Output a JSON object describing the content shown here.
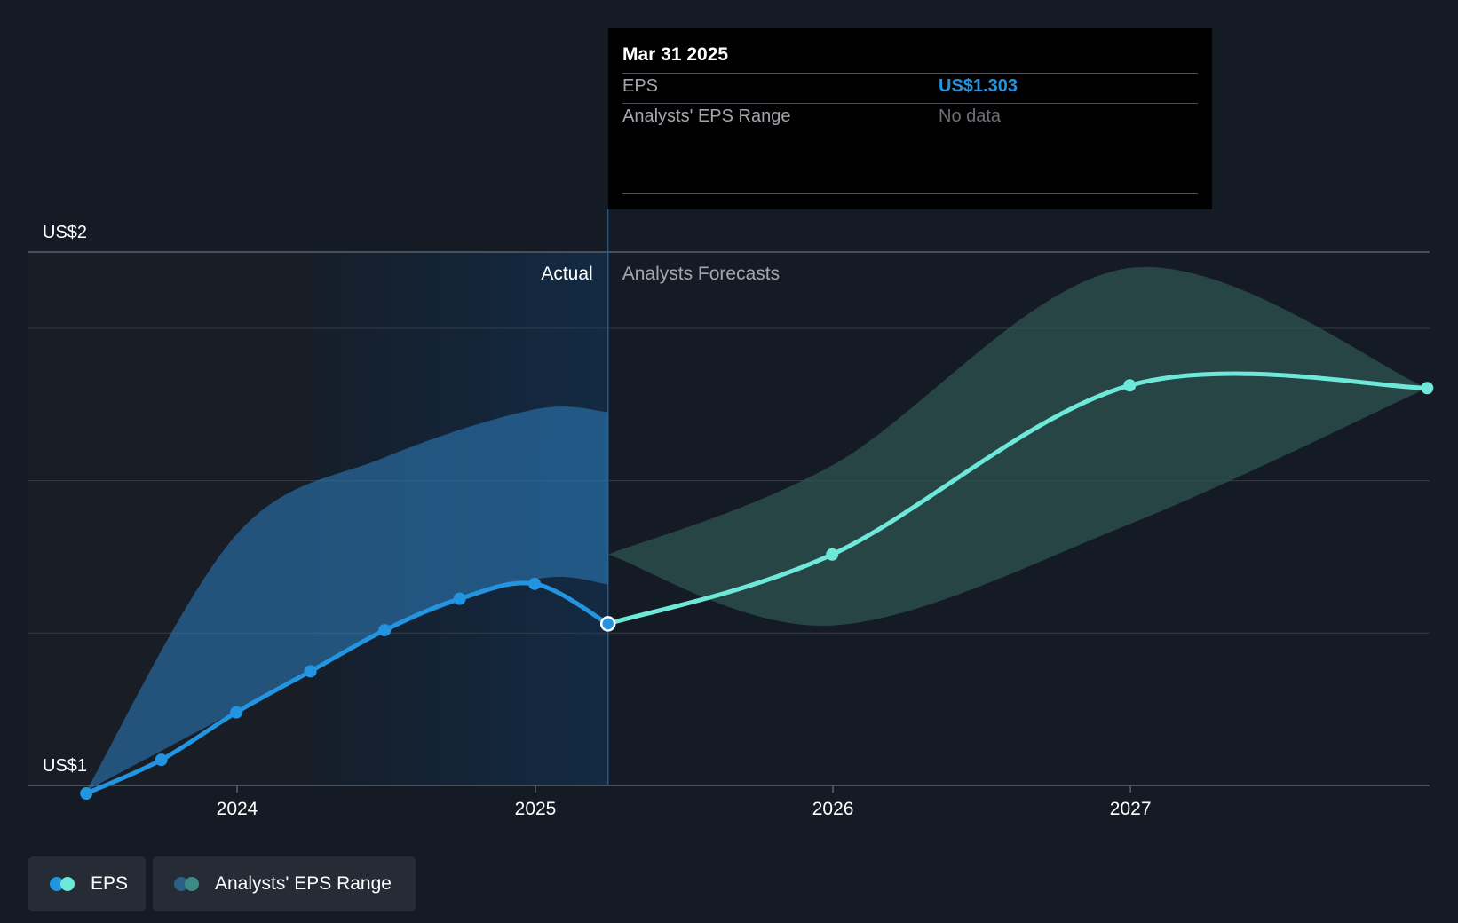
{
  "chart_data": {
    "type": "line",
    "x_axis": {
      "ticks": [
        "2024",
        "2025",
        "2026",
        "2027"
      ]
    },
    "y_axis": {
      "labels": [
        "US$2",
        "US$1"
      ],
      "ylim": [
        1,
        2
      ]
    },
    "region_labels": {
      "actual": "Actual",
      "forecast": "Analysts Forecasts"
    },
    "forecast_start": "Mar 31 2025",
    "series": [
      {
        "name": "EPS",
        "color": "#2394df",
        "points": [
          {
            "x": "2023-06-30",
            "y": 0.985
          },
          {
            "x": "2023-09-30",
            "y": 1.048
          },
          {
            "x": "2023-12-31",
            "y": 1.137
          },
          {
            "x": "2024-03-31",
            "y": 1.214
          },
          {
            "x": "2024-06-30",
            "y": 1.291
          },
          {
            "x": "2024-09-30",
            "y": 1.35
          },
          {
            "x": "2024-12-31",
            "y": 1.378
          },
          {
            "x": "2025-03-31",
            "y": 1.303
          }
        ]
      },
      {
        "name": "EPS",
        "color": "#6ee8d8",
        "points": [
          {
            "x": "2025-03-31",
            "y": 1.303
          },
          {
            "x": "2025-12-31",
            "y": 1.433
          },
          {
            "x": "2026-12-31",
            "y": 1.75
          },
          {
            "x": "2027-12-31",
            "y": 1.745
          }
        ]
      },
      {
        "name": "Analysts' EPS Range",
        "color": "#2e7fc0",
        "upper": [
          {
            "x": "2023-06-30",
            "y": 0.99
          },
          {
            "x": "2023-12-31",
            "y": 1.47
          },
          {
            "x": "2024-06-30",
            "y": 1.615
          },
          {
            "x": "2024-12-31",
            "y": 1.705
          },
          {
            "x": "2025-03-31",
            "y": 1.7
          }
        ],
        "lower": [
          {
            "x": "2023-06-30",
            "y": 0.99
          },
          {
            "x": "2023-12-31",
            "y": 1.14
          },
          {
            "x": "2024-06-30",
            "y": 1.29
          },
          {
            "x": "2024-12-31",
            "y": 1.386
          },
          {
            "x": "2025-03-31",
            "y": 1.377
          }
        ]
      },
      {
        "name": "Analysts' EPS Range",
        "color": "#2f5452",
        "upper": [
          {
            "x": "2025-03-31",
            "y": 1.433
          },
          {
            "x": "2025-12-31",
            "y": 1.6
          },
          {
            "x": "2026-12-31",
            "y": 1.97
          },
          {
            "x": "2027-12-31",
            "y": 1.745
          }
        ],
        "lower": [
          {
            "x": "2025-03-31",
            "y": 1.433
          },
          {
            "x": "2025-12-31",
            "y": 1.3
          },
          {
            "x": "2026-12-31",
            "y": 1.49
          },
          {
            "x": "2027-12-31",
            "y": 1.745
          }
        ]
      }
    ],
    "legend": [
      "EPS",
      "Analysts' EPS Range"
    ],
    "grid": true,
    "legend_position": "bottom-left"
  },
  "tooltip": {
    "date": "Mar 31 2025",
    "rows": [
      {
        "label": "EPS",
        "value": "US$1.303",
        "color": "#2394df"
      },
      {
        "label": "Analysts' EPS Range",
        "value": "No data",
        "color": "#6b7076"
      }
    ]
  },
  "legend": {
    "items": [
      {
        "label": "EPS",
        "colors": [
          "#2394df",
          "#6ee8d8"
        ]
      },
      {
        "label": "Analysts' EPS Range",
        "colors": [
          "#2c5f86",
          "#3d8b82"
        ]
      }
    ]
  },
  "colors": {
    "background": "#151b24",
    "actual_region": "#12263a",
    "grid": "#343c47"
  }
}
